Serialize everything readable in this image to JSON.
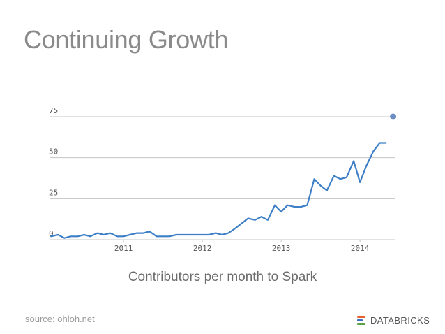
{
  "slide": {
    "title": "Continuing Growth",
    "caption": "Contributors per month to Spark",
    "source": "source: ohloh.net",
    "brand": "DATABRICKS"
  },
  "colors": {
    "line": "#3d7fc7",
    "marker": "#6d8fc6",
    "grid": "#c4c4c4",
    "brand_orange": "#e8622b",
    "brand_blue": "#3a6fc4",
    "brand_green": "#5aa345"
  },
  "icons": {
    "brand_logo": "databricks-logo-icon"
  },
  "chart_data": {
    "type": "line",
    "title": "",
    "xlabel": "",
    "ylabel": "",
    "ylim": [
      0,
      75
    ],
    "xlim": [
      2010.07,
      2014.45
    ],
    "yticks": [
      {
        "value": 0,
        "label": "0"
      },
      {
        "value": 25,
        "label": "25"
      },
      {
        "value": 50,
        "label": "50"
      },
      {
        "value": 75,
        "label": "75"
      }
    ],
    "xticks": [
      {
        "value": 2011,
        "label": "2011"
      },
      {
        "value": 2012,
        "label": "2012"
      },
      {
        "value": 2013,
        "label": "2013"
      },
      {
        "value": 2014,
        "label": "2014"
      }
    ],
    "grid": true,
    "legend": "none",
    "series": [
      {
        "x": [
          2010.08,
          2010.17,
          2010.25,
          2010.33,
          2010.42,
          2010.5,
          2010.58,
          2010.67,
          2010.75,
          2010.83,
          2010.92,
          2011.0,
          2011.08,
          2011.17,
          2011.25,
          2011.33,
          2011.42,
          2011.5,
          2011.58,
          2011.67,
          2011.75,
          2011.83,
          2011.92,
          2012.0,
          2012.08,
          2012.17,
          2012.25,
          2012.33,
          2012.42,
          2012.5,
          2012.58,
          2012.67,
          2012.75,
          2012.83,
          2012.92,
          2013.0,
          2013.08,
          2013.17,
          2013.25,
          2013.33,
          2013.42,
          2013.5,
          2013.58,
          2013.67,
          2013.75,
          2013.83,
          2013.92,
          2014.0,
          2014.08,
          2014.17,
          2014.25,
          2014.33
        ],
        "values": [
          2,
          3,
          1,
          2,
          2,
          3,
          2,
          4,
          3,
          4,
          2,
          2,
          3,
          4,
          4,
          5,
          2,
          2,
          2,
          3,
          3,
          3,
          3,
          3,
          3,
          4,
          3,
          4,
          7,
          10,
          13,
          12,
          14,
          12,
          21,
          17,
          21,
          20,
          20,
          21,
          37,
          33,
          30,
          39,
          37,
          38,
          48,
          35,
          45,
          54,
          59,
          59
        ]
      }
    ],
    "marker_point": {
      "x": 2014.42,
      "y": 75
    }
  }
}
